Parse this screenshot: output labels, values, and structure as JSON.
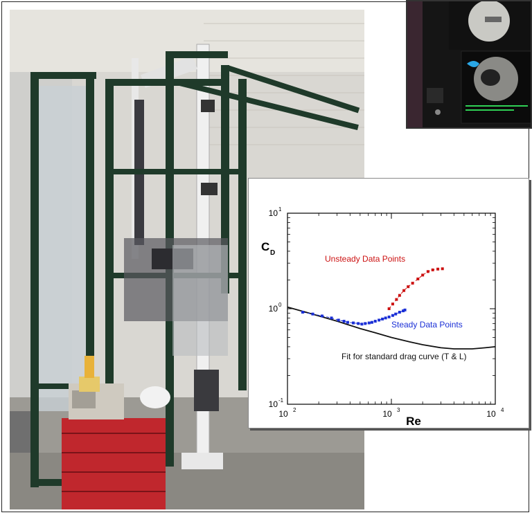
{
  "figure": {
    "photo_description_hidden": "",
    "chart_data": {
      "type": "scatter",
      "x_scale": "log",
      "y_scale": "log",
      "xlim": [
        100,
        10000
      ],
      "ylim": [
        0.1,
        10
      ],
      "xlabel": "Re",
      "ylabel_main": "C",
      "ylabel_sub": "D",
      "x_ticks": [
        {
          "base": "10",
          "exp": "2",
          "value": 100
        },
        {
          "base": "10",
          "exp": "3",
          "value": 1000
        },
        {
          "base": "10",
          "exp": "4",
          "value": 10000
        }
      ],
      "y_ticks": [
        {
          "base": "10",
          "exp": "1",
          "value": 10
        },
        {
          "base": "10",
          "exp": "0",
          "value": 1
        },
        {
          "base": "10",
          "exp": "-1",
          "value": 0.1
        }
      ],
      "annotations": {
        "unsteady": "Unsteady Data Points",
        "steady": "Steady Data Points",
        "fit": "Fit for standard drag curve (T & L)"
      },
      "colors": {
        "unsteady": "#cc1111",
        "steady": "#1a2fd6",
        "fit": "#111111"
      },
      "series": [
        {
          "key": "steady",
          "points": [
            [
              140,
              0.92
            ],
            [
              175,
              0.88
            ],
            [
              215,
              0.84
            ],
            [
              265,
              0.8
            ],
            [
              310,
              0.76
            ],
            [
              350,
              0.74
            ],
            [
              380,
              0.72
            ],
            [
              430,
              0.71
            ],
            [
              480,
              0.7
            ],
            [
              520,
              0.69
            ],
            [
              560,
              0.7
            ],
            [
              610,
              0.71
            ],
            [
              650,
              0.72
            ],
            [
              700,
              0.74
            ],
            [
              760,
              0.76
            ],
            [
              820,
              0.78
            ],
            [
              880,
              0.8
            ],
            [
              950,
              0.82
            ],
            [
              1030,
              0.85
            ],
            [
              1100,
              0.88
            ],
            [
              1200,
              0.92
            ],
            [
              1300,
              0.95
            ],
            [
              1350,
              0.97
            ]
          ]
        },
        {
          "key": "unsteady",
          "points": [
            [
              950,
              1.0
            ],
            [
              1030,
              1.12
            ],
            [
              1120,
              1.25
            ],
            [
              1200,
              1.38
            ],
            [
              1320,
              1.55
            ],
            [
              1450,
              1.7
            ],
            [
              1600,
              1.85
            ],
            [
              1800,
              2.05
            ],
            [
              2000,
              2.25
            ],
            [
              2250,
              2.45
            ],
            [
              2500,
              2.55
            ],
            [
              2800,
              2.6
            ],
            [
              3100,
              2.62
            ]
          ]
        },
        {
          "key": "fit",
          "points": [
            [
              100,
              1.04
            ],
            [
              150,
              0.92
            ],
            [
              200,
              0.84
            ],
            [
              300,
              0.74
            ],
            [
              400,
              0.67
            ],
            [
              500,
              0.62
            ],
            [
              700,
              0.56
            ],
            [
              1000,
              0.5
            ],
            [
              1500,
              0.45
            ],
            [
              2000,
              0.42
            ],
            [
              3000,
              0.39
            ],
            [
              4000,
              0.38
            ],
            [
              6000,
              0.38
            ],
            [
              8000,
              0.39
            ],
            [
              10000,
              0.4
            ]
          ]
        }
      ]
    }
  }
}
